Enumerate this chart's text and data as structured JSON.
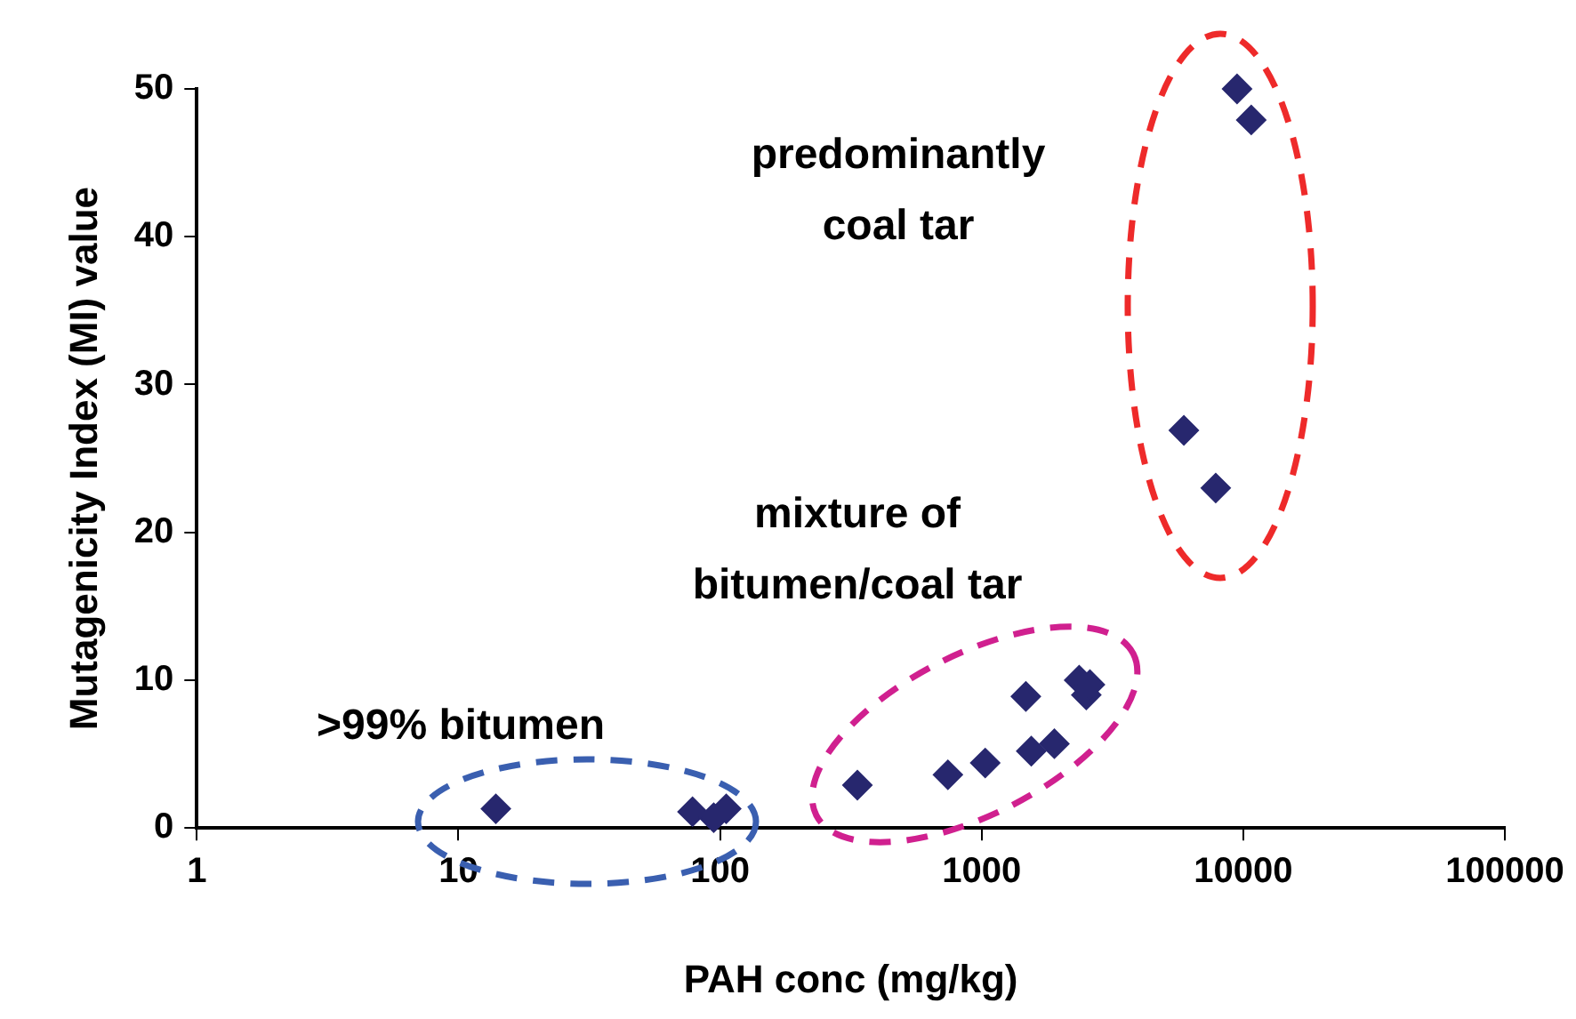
{
  "chart_data": {
    "type": "scatter",
    "xlabel": "PAH conc (mg/kg)",
    "ylabel": "Mutagenicity Index (MI) value",
    "x": [
      13.9,
      78.5,
      94.6,
      105.6,
      335,
      743,
      1032,
      1476,
      1548,
      1897,
      2360,
      2512,
      2594,
      5930,
      7850,
      9470,
      10730
    ],
    "values": [
      1.3,
      1.1,
      0.7,
      1.3,
      2.9,
      3.6,
      4.4,
      8.9,
      5.2,
      5.7,
      10.0,
      9.0,
      9.7,
      26.9,
      23.0,
      50,
      47.9
    ],
    "color": "#27276e",
    "marker": "diamond",
    "log": "x",
    "grid": false,
    "legend": false,
    "xlim": [
      1,
      100000
    ],
    "xticks": [
      1,
      10,
      100,
      1000,
      10000,
      100000
    ],
    "ylim": [
      0,
      50
    ],
    "yticks": [
      0,
      10,
      20,
      30,
      40,
      50
    ],
    "annotations": [
      "predominantly\ncoal tar",
      "mixture of\nbitumen/coal tar",
      ">99% bitumen"
    ]
  }
}
